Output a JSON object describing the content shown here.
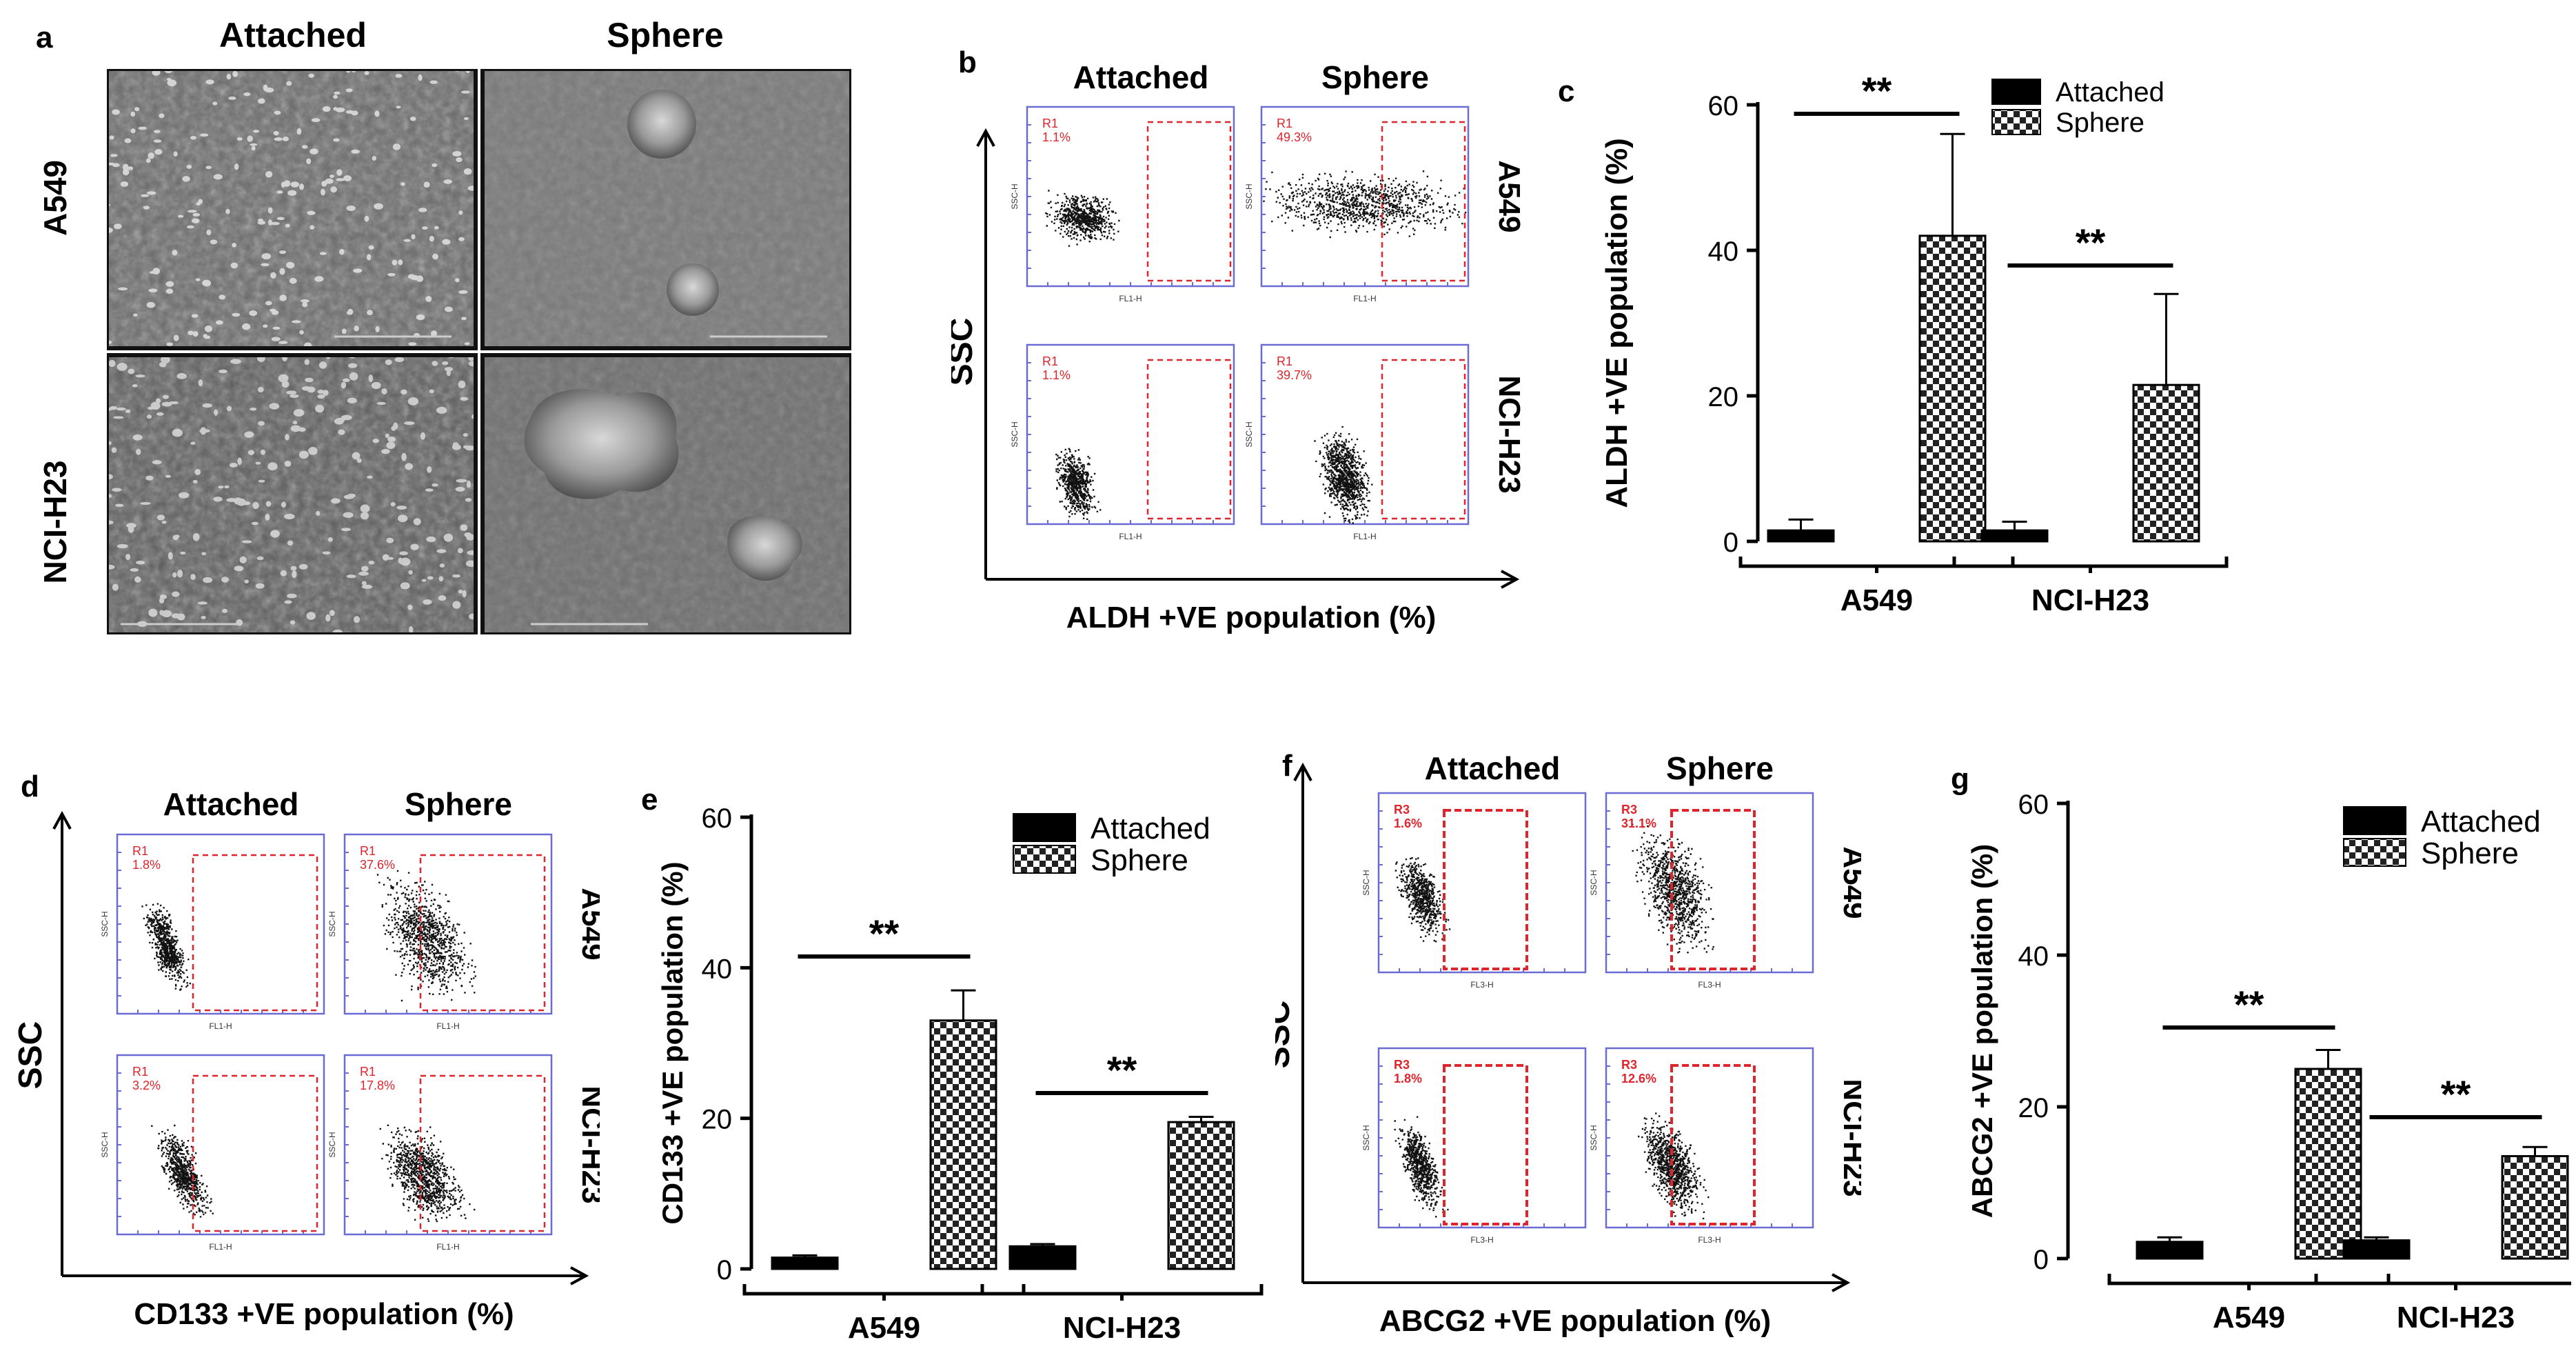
{
  "panels": {
    "a": {
      "label": "a",
      "columns": [
        "Attached",
        "Sphere"
      ],
      "rows": [
        "A549",
        "NCI-H23"
      ]
    },
    "b": {
      "label": "b",
      "columns": [
        "Attached",
        "Sphere"
      ],
      "rows": [
        "A549",
        "NCI-H23"
      ],
      "y_axis": "SSC",
      "x_axis": "ALDH +VE population (%)",
      "gates": [
        {
          "name": "R1",
          "value": "1.1%"
        },
        {
          "name": "R1",
          "value": "49.3%"
        },
        {
          "name": "R1",
          "value": "1.1%"
        },
        {
          "name": "R1",
          "value": "39.7%"
        }
      ],
      "axis_text": {
        "y": "SSC-H",
        "x": "FL1-H"
      }
    },
    "d": {
      "label": "d",
      "columns": [
        "Attached",
        "Sphere"
      ],
      "rows": [
        "A549",
        "NCI-H23"
      ],
      "y_axis": "SSC",
      "x_axis": "CD133 +VE population  (%)",
      "gates": [
        {
          "name": "R1",
          "value": "1.8%"
        },
        {
          "name": "R1",
          "value": "37.6%"
        },
        {
          "name": "R1",
          "value": "3.2%"
        },
        {
          "name": "R1",
          "value": "17.8%"
        }
      ],
      "axis_text": {
        "y": "SSC-H",
        "x": "FL1-H"
      }
    },
    "f": {
      "label": "f",
      "columns": [
        "Attached",
        "Sphere"
      ],
      "rows": [
        "A549",
        "NCI-H23"
      ],
      "y_axis": "SSC",
      "x_axis": "ABCG2 +VE population (%)",
      "gates": [
        {
          "name": "R3",
          "value": "1.6%"
        },
        {
          "name": "R3",
          "value": "31.1%"
        },
        {
          "name": "R3",
          "value": "1.8%"
        },
        {
          "name": "R3",
          "value": "12.6%"
        }
      ],
      "axis_text": {
        "y": "SSC-H",
        "x": "FL3-H"
      }
    }
  },
  "chart_data": [
    {
      "panel": "c",
      "type": "bar",
      "categories": [
        "A549",
        "NCI-H23"
      ],
      "series": [
        {
          "name": "Attached",
          "values": [
            1.5,
            1.5
          ],
          "errors": [
            1.5,
            1.2
          ]
        },
        {
          "name": "Sphere",
          "values": [
            42,
            21.5
          ],
          "errors": [
            14,
            12.5
          ]
        }
      ],
      "ylabel": "ALDH +VE population (%)",
      "ylim": [
        0,
        60
      ],
      "yticks": [
        0,
        20,
        40,
        60
      ],
      "significance": [
        "**",
        "**"
      ],
      "legend": "top-right",
      "colors": {
        "Attached": "#000000",
        "Sphere": "checker"
      }
    },
    {
      "panel": "e",
      "type": "bar",
      "categories": [
        "A549",
        "NCI-H23"
      ],
      "series": [
        {
          "name": "Attached",
          "values": [
            1.5,
            3
          ],
          "errors": [
            0.3,
            0.3
          ]
        },
        {
          "name": "Sphere",
          "values": [
            33,
            19.5
          ],
          "errors": [
            4,
            0.7
          ]
        }
      ],
      "ylabel": "CD133 +VE population (%)",
      "ylim": [
        0,
        60
      ],
      "yticks": [
        0,
        20,
        40,
        60
      ],
      "significance": [
        "**",
        "**"
      ],
      "legend": "top-right",
      "colors": {
        "Attached": "#000000",
        "Sphere": "checker"
      }
    },
    {
      "panel": "g",
      "type": "bar",
      "categories": [
        "A549",
        "NCI-H23"
      ],
      "series": [
        {
          "name": "Attached",
          "values": [
            2.2,
            2.4
          ],
          "errors": [
            0.6,
            0.4
          ]
        },
        {
          "name": "Sphere",
          "values": [
            25,
            13.5
          ],
          "errors": [
            2.5,
            1.2
          ]
        }
      ],
      "ylabel": "ABCG2 +VE population (%)",
      "ylim": [
        0,
        60
      ],
      "yticks": [
        0,
        20,
        40,
        60
      ],
      "significance": [
        "**",
        "**"
      ],
      "legend": "top-right",
      "colors": {
        "Attached": "#000000",
        "Sphere": "checker"
      }
    }
  ]
}
